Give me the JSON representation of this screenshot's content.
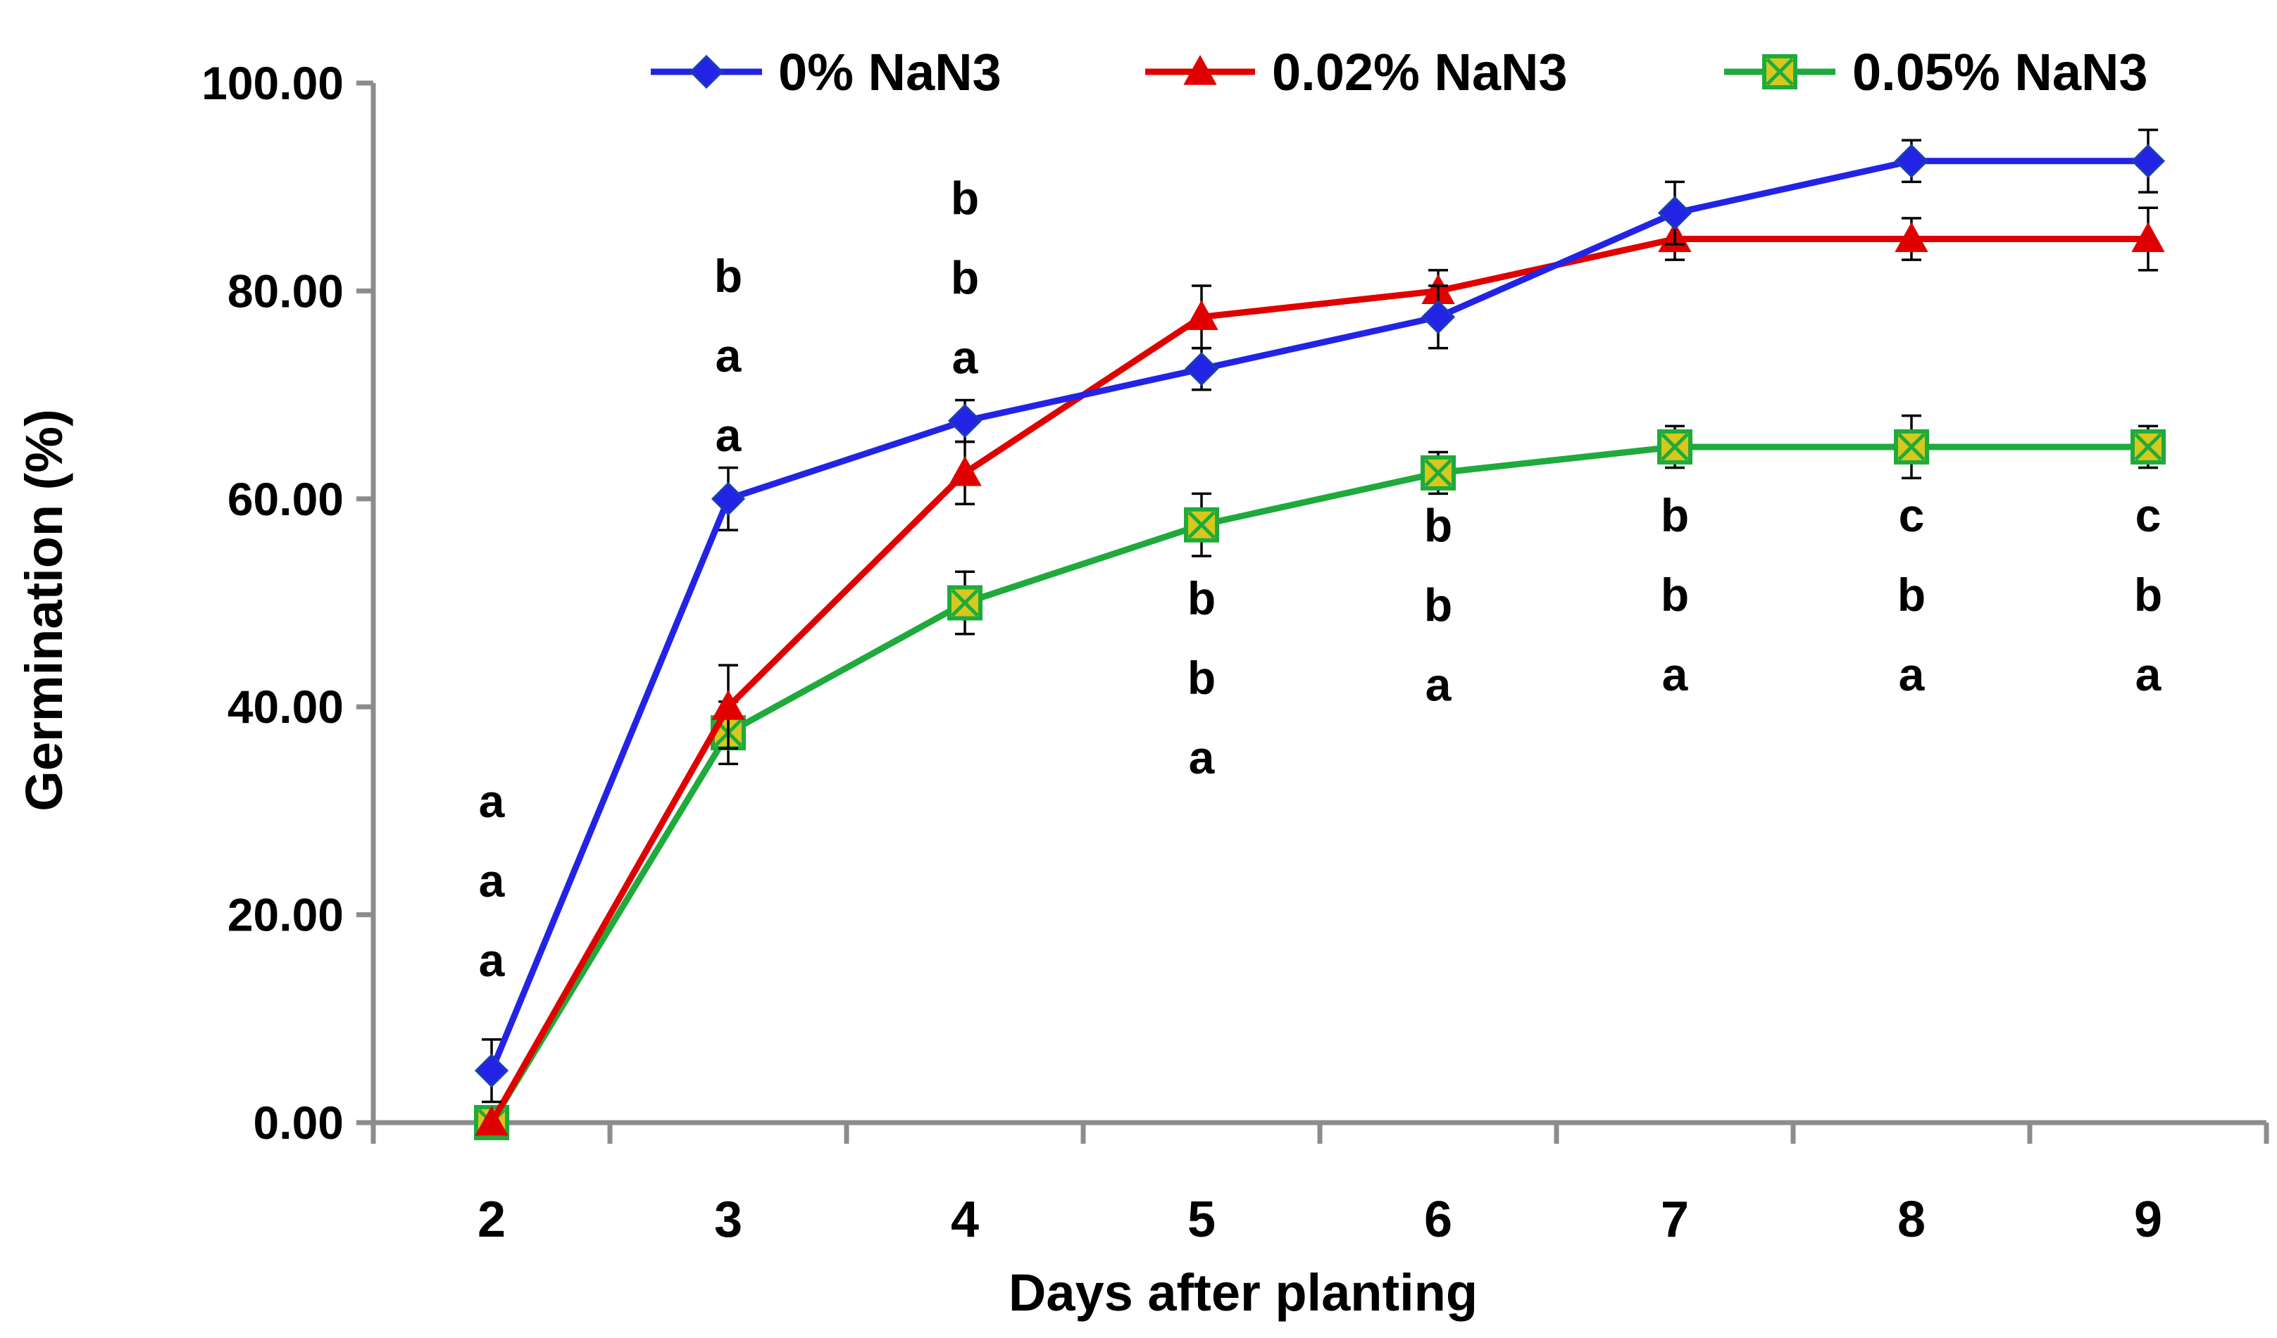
{
  "chart_data": {
    "type": "line",
    "title": "",
    "xlabel": "Days after planting",
    "ylabel": "Germination (%)",
    "x": [
      2,
      3,
      4,
      5,
      6,
      7,
      8,
      9
    ],
    "x_tick_labels": [
      "2",
      "3",
      "4",
      "5",
      "6",
      "7",
      "8",
      "9"
    ],
    "ylim": [
      0,
      100
    ],
    "y_ticks": [
      0,
      20,
      40,
      60,
      80,
      100
    ],
    "y_tick_labels": [
      "0.00",
      "20.00",
      "40.00",
      "60.00",
      "80.00",
      "100.00"
    ],
    "grid": false,
    "legend_position": "top",
    "series": [
      {
        "name": "0% NaN3",
        "color": "#2323E6",
        "marker": "diamond",
        "values": [
          5,
          60,
          67.5,
          72.5,
          77.5,
          87.5,
          92.5,
          92.5
        ],
        "errors": [
          3,
          3,
          2,
          2,
          3,
          3,
          2,
          3
        ]
      },
      {
        "name": "0.02% NaN3",
        "color": "#E00000",
        "marker": "triangle",
        "values": [
          0,
          40,
          62.5,
          77.5,
          80,
          85,
          85,
          85
        ],
        "errors": [
          0,
          4,
          3,
          3,
          2,
          2,
          2,
          3
        ]
      },
      {
        "name": "0.05% NaN3",
        "color": "#1FAA3C",
        "marker": "square-x",
        "values": [
          0,
          37.5,
          50,
          57.5,
          62.5,
          65,
          65,
          65
        ],
        "errors": [
          0,
          3,
          3,
          3,
          2,
          2,
          3,
          2
        ]
      }
    ],
    "annotations": [
      {
        "x": 2,
        "letters": [
          "a",
          "a",
          "a"
        ],
        "top_value": 31
      },
      {
        "x": 3,
        "letters": [
          "b",
          "a",
          "a"
        ],
        "top_value": 81.5
      },
      {
        "x": 4,
        "letters": [
          "b",
          "b",
          "a"
        ],
        "top_value": 89
      },
      {
        "x": 5,
        "letters": [
          "b",
          "b",
          "a"
        ],
        "top_value": 50.5
      },
      {
        "x": 6,
        "letters": [
          "b",
          "b",
          "a"
        ],
        "top_value": 57.5
      },
      {
        "x": 7,
        "letters": [
          "b",
          "b",
          "a"
        ],
        "top_value": 58.5
      },
      {
        "x": 8,
        "letters": [
          "c",
          "b",
          "a"
        ],
        "top_value": 58.5
      },
      {
        "x": 9,
        "letters": [
          "c",
          "b",
          "a"
        ],
        "top_value": 58.5
      }
    ]
  }
}
